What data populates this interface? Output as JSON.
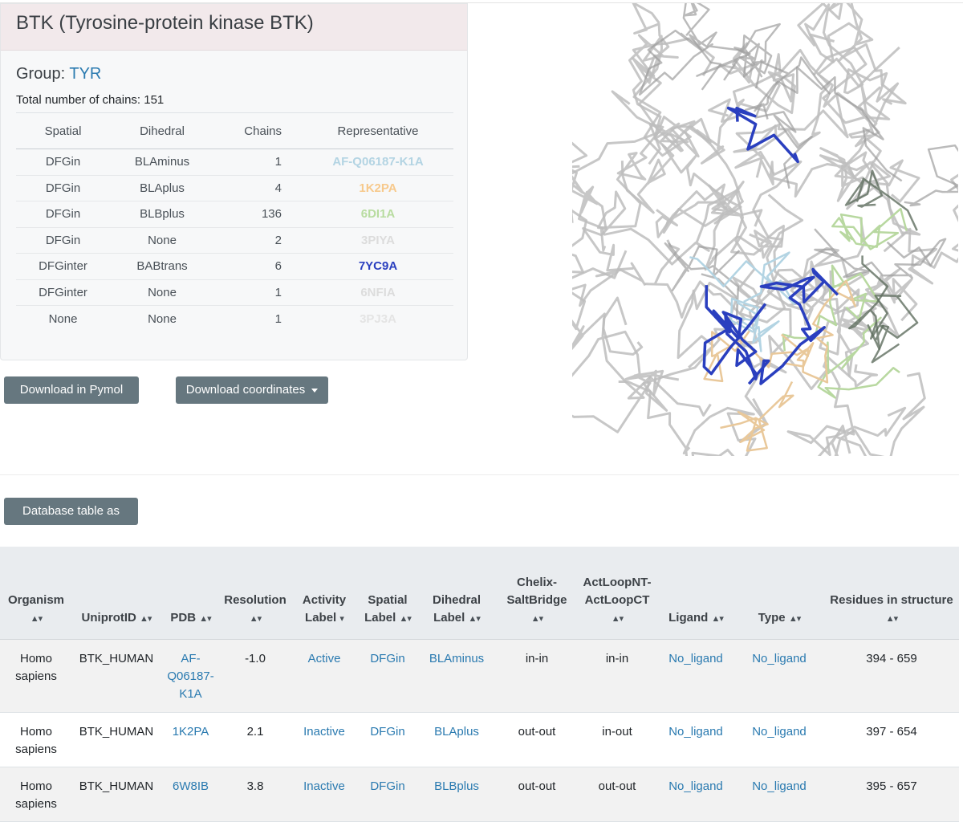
{
  "kinase": {
    "title": "BTK (Tyrosine-protein kinase BTK)",
    "group_label": "Group:",
    "group_value": "TYR",
    "total_chains": "Total number of chains: 151"
  },
  "summary": {
    "headers": [
      "Spatial",
      "Dihedral",
      "Chains",
      "Representative"
    ],
    "rows": [
      {
        "spatial": "DFGin",
        "dihedral": "BLAminus",
        "chains": "1",
        "rep": "AF-Q06187-K1A",
        "color": "#b3d4e3"
      },
      {
        "spatial": "DFGin",
        "dihedral": "BLAplus",
        "chains": "4",
        "rep": "1K2PA",
        "color": "#f7c98c"
      },
      {
        "spatial": "DFGin",
        "dihedral": "BLBplus",
        "chains": "136",
        "rep": "6DI1A",
        "color": "#b8dca0"
      },
      {
        "spatial": "DFGin",
        "dihedral": "None",
        "chains": "2",
        "rep": "3PIYA",
        "color": "#dcdcdc"
      },
      {
        "spatial": "DFGinter",
        "dihedral": "BABtrans",
        "chains": "6",
        "rep": "7YC9A",
        "color": "#2a3fbf"
      },
      {
        "spatial": "DFGinter",
        "dihedral": "None",
        "chains": "1",
        "rep": "6NFIA",
        "color": "#dcdcdc"
      },
      {
        "spatial": "None",
        "dihedral": "None",
        "chains": "1",
        "rep": "3PJ3A",
        "color": "#e4e4e4"
      }
    ]
  },
  "buttons": {
    "pymol": "Download in Pymol",
    "coords": "Download coordinates",
    "tsv": "Database table as tsv"
  },
  "db_table": {
    "sort_glyph": "▲▾",
    "columns": [
      {
        "label": "Organism",
        "sort": "▲▾"
      },
      {
        "label": "UniprotID",
        "sort": "▲▾"
      },
      {
        "label": "PDB",
        "sort": "▲▾"
      },
      {
        "label": "Resolution",
        "sort": "▲▾"
      },
      {
        "label": "Activity Label",
        "sort": "▾"
      },
      {
        "label": "Spatial Label",
        "sort": "▲▾"
      },
      {
        "label": "Dihedral Label",
        "sort": "▲▾"
      },
      {
        "label": "Chelix-SaltBridge",
        "sort": "▲▾"
      },
      {
        "label": "ActLoopNT-ActLoopCT",
        "sort": "▲▾"
      },
      {
        "label": "Ligand",
        "sort": "▲▾"
      },
      {
        "label": "Type",
        "sort": "▲▾"
      },
      {
        "label": "Residues in structure",
        "sort": "▲▾"
      }
    ],
    "rows": [
      {
        "organism": "Homo sapiens",
        "uniprot": "BTK_HUMAN",
        "pdb": "AF-Q06187-K1A",
        "resolution": "-1.0",
        "activity": "Active",
        "spatial": "DFGin",
        "dihedral": "BLAminus",
        "chelix": "in-in",
        "actloop": "in-in",
        "ligand": "No_ligand",
        "type": "No_ligand",
        "residues": "394 - 659"
      },
      {
        "organism": "Homo sapiens",
        "uniprot": "BTK_HUMAN",
        "pdb": "1K2PA",
        "resolution": "2.1",
        "activity": "Inactive",
        "spatial": "DFGin",
        "dihedral": "BLAplus",
        "chelix": "out-out",
        "actloop": "in-out",
        "ligand": "No_ligand",
        "type": "No_ligand",
        "residues": "397 - 654"
      },
      {
        "organism": "Homo sapiens",
        "uniprot": "BTK_HUMAN",
        "pdb": "6W8IB",
        "resolution": "3.8",
        "activity": "Inactive",
        "spatial": "DFGin",
        "dihedral": "BLBplus",
        "chelix": "out-out",
        "actloop": "out-out",
        "ligand": "No_ligand",
        "type": "No_ligand",
        "residues": "395 - 657"
      }
    ]
  }
}
